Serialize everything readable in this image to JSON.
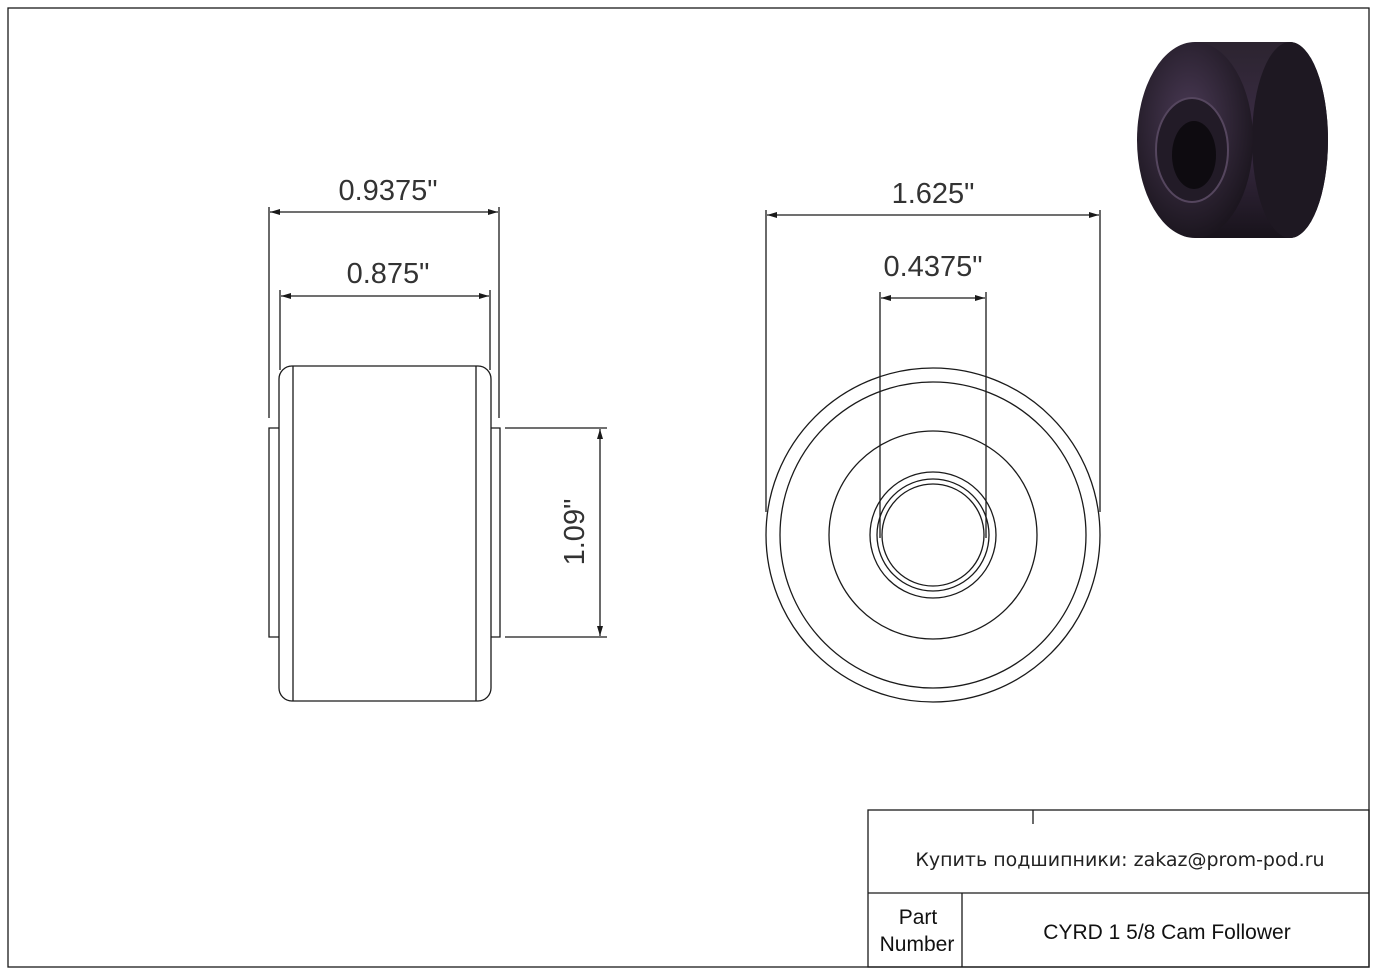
{
  "drawing": {
    "side_view": {
      "overall_width": "0.9375\"",
      "outer_width": "0.875\"",
      "bore_height": "1.09\""
    },
    "front_view": {
      "outer_diameter": "1.625\"",
      "bore_diameter": "0.4375\""
    },
    "preview_3d": {
      "color": "#2a2230"
    }
  },
  "title_block": {
    "contact": "Купить подшипники: zakaz@prom-pod.ru",
    "part_label_line1": "Part",
    "part_label_line2": "Number",
    "part_number": "CYRD 1 5/8 Cam Follower"
  }
}
